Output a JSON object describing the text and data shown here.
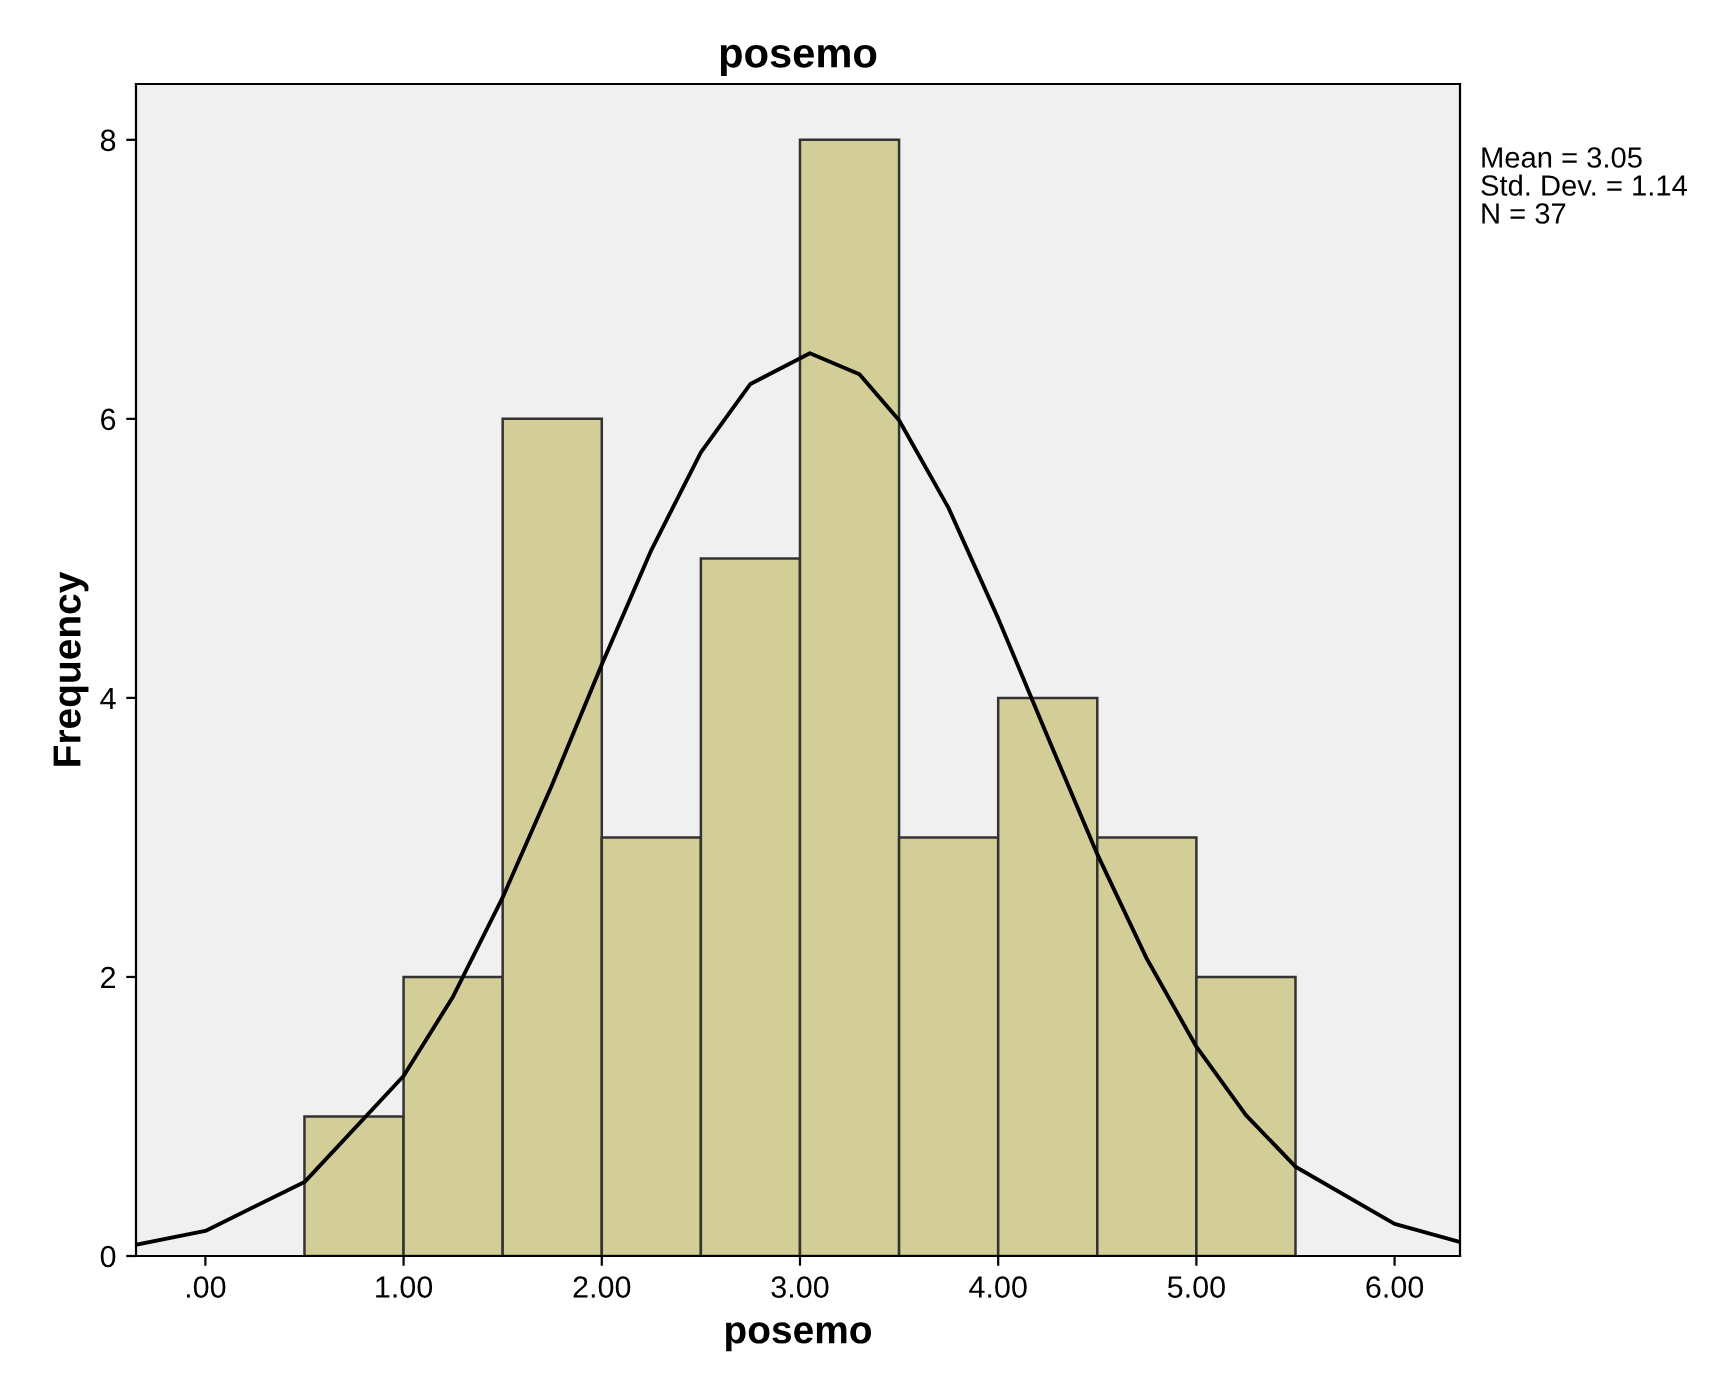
{
  "chart_data": {
    "type": "histogram",
    "title": "posemo",
    "xlabel": "posemo",
    "ylabel": "Frequency",
    "bins": [
      0.5,
      1.0,
      1.5,
      2.0,
      2.5,
      3.0,
      3.5,
      4.0,
      4.5,
      5.0,
      5.5
    ],
    "values": [
      1,
      2,
      6,
      3,
      5,
      8,
      3,
      4,
      3,
      2
    ],
    "color": "#d3ce97",
    "series": [
      {
        "type": "line",
        "color": "#000000",
        "x": [
          -0.35,
          0.0,
          0.5,
          1.0,
          1.25,
          1.5,
          1.75,
          2.0,
          2.25,
          2.5,
          2.75,
          3.05,
          3.3,
          3.5,
          3.75,
          4.0,
          4.25,
          4.5,
          4.75,
          5.0,
          5.25,
          5.5,
          6.0,
          6.33
        ],
        "values": [
          0.08,
          0.18,
          0.53,
          1.29,
          1.86,
          2.57,
          3.38,
          4.24,
          5.06,
          5.76,
          6.25,
          6.47,
          6.32,
          5.99,
          5.36,
          4.57,
          3.72,
          2.88,
          2.13,
          1.5,
          1.01,
          0.64,
          0.23,
          0.1
        ]
      }
    ],
    "xlim": [
      -0.35,
      6.33
    ],
    "ylim": [
      0,
      8.4
    ],
    "xticks": [
      {
        "value": 0,
        "label": ".00"
      },
      {
        "value": 1,
        "label": "1.00"
      },
      {
        "value": 2,
        "label": "2.00"
      },
      {
        "value": 3,
        "label": "3.00"
      },
      {
        "value": 4,
        "label": "4.00"
      },
      {
        "value": 5,
        "label": "5.00"
      },
      {
        "value": 6,
        "label": "6.00"
      }
    ],
    "yticks": [
      0,
      2,
      4,
      6,
      8
    ],
    "grid": false,
    "legend": false,
    "annotations": [
      "Mean = 3.05",
      "Std. Dev. = 1.14",
      "N = 37"
    ]
  }
}
